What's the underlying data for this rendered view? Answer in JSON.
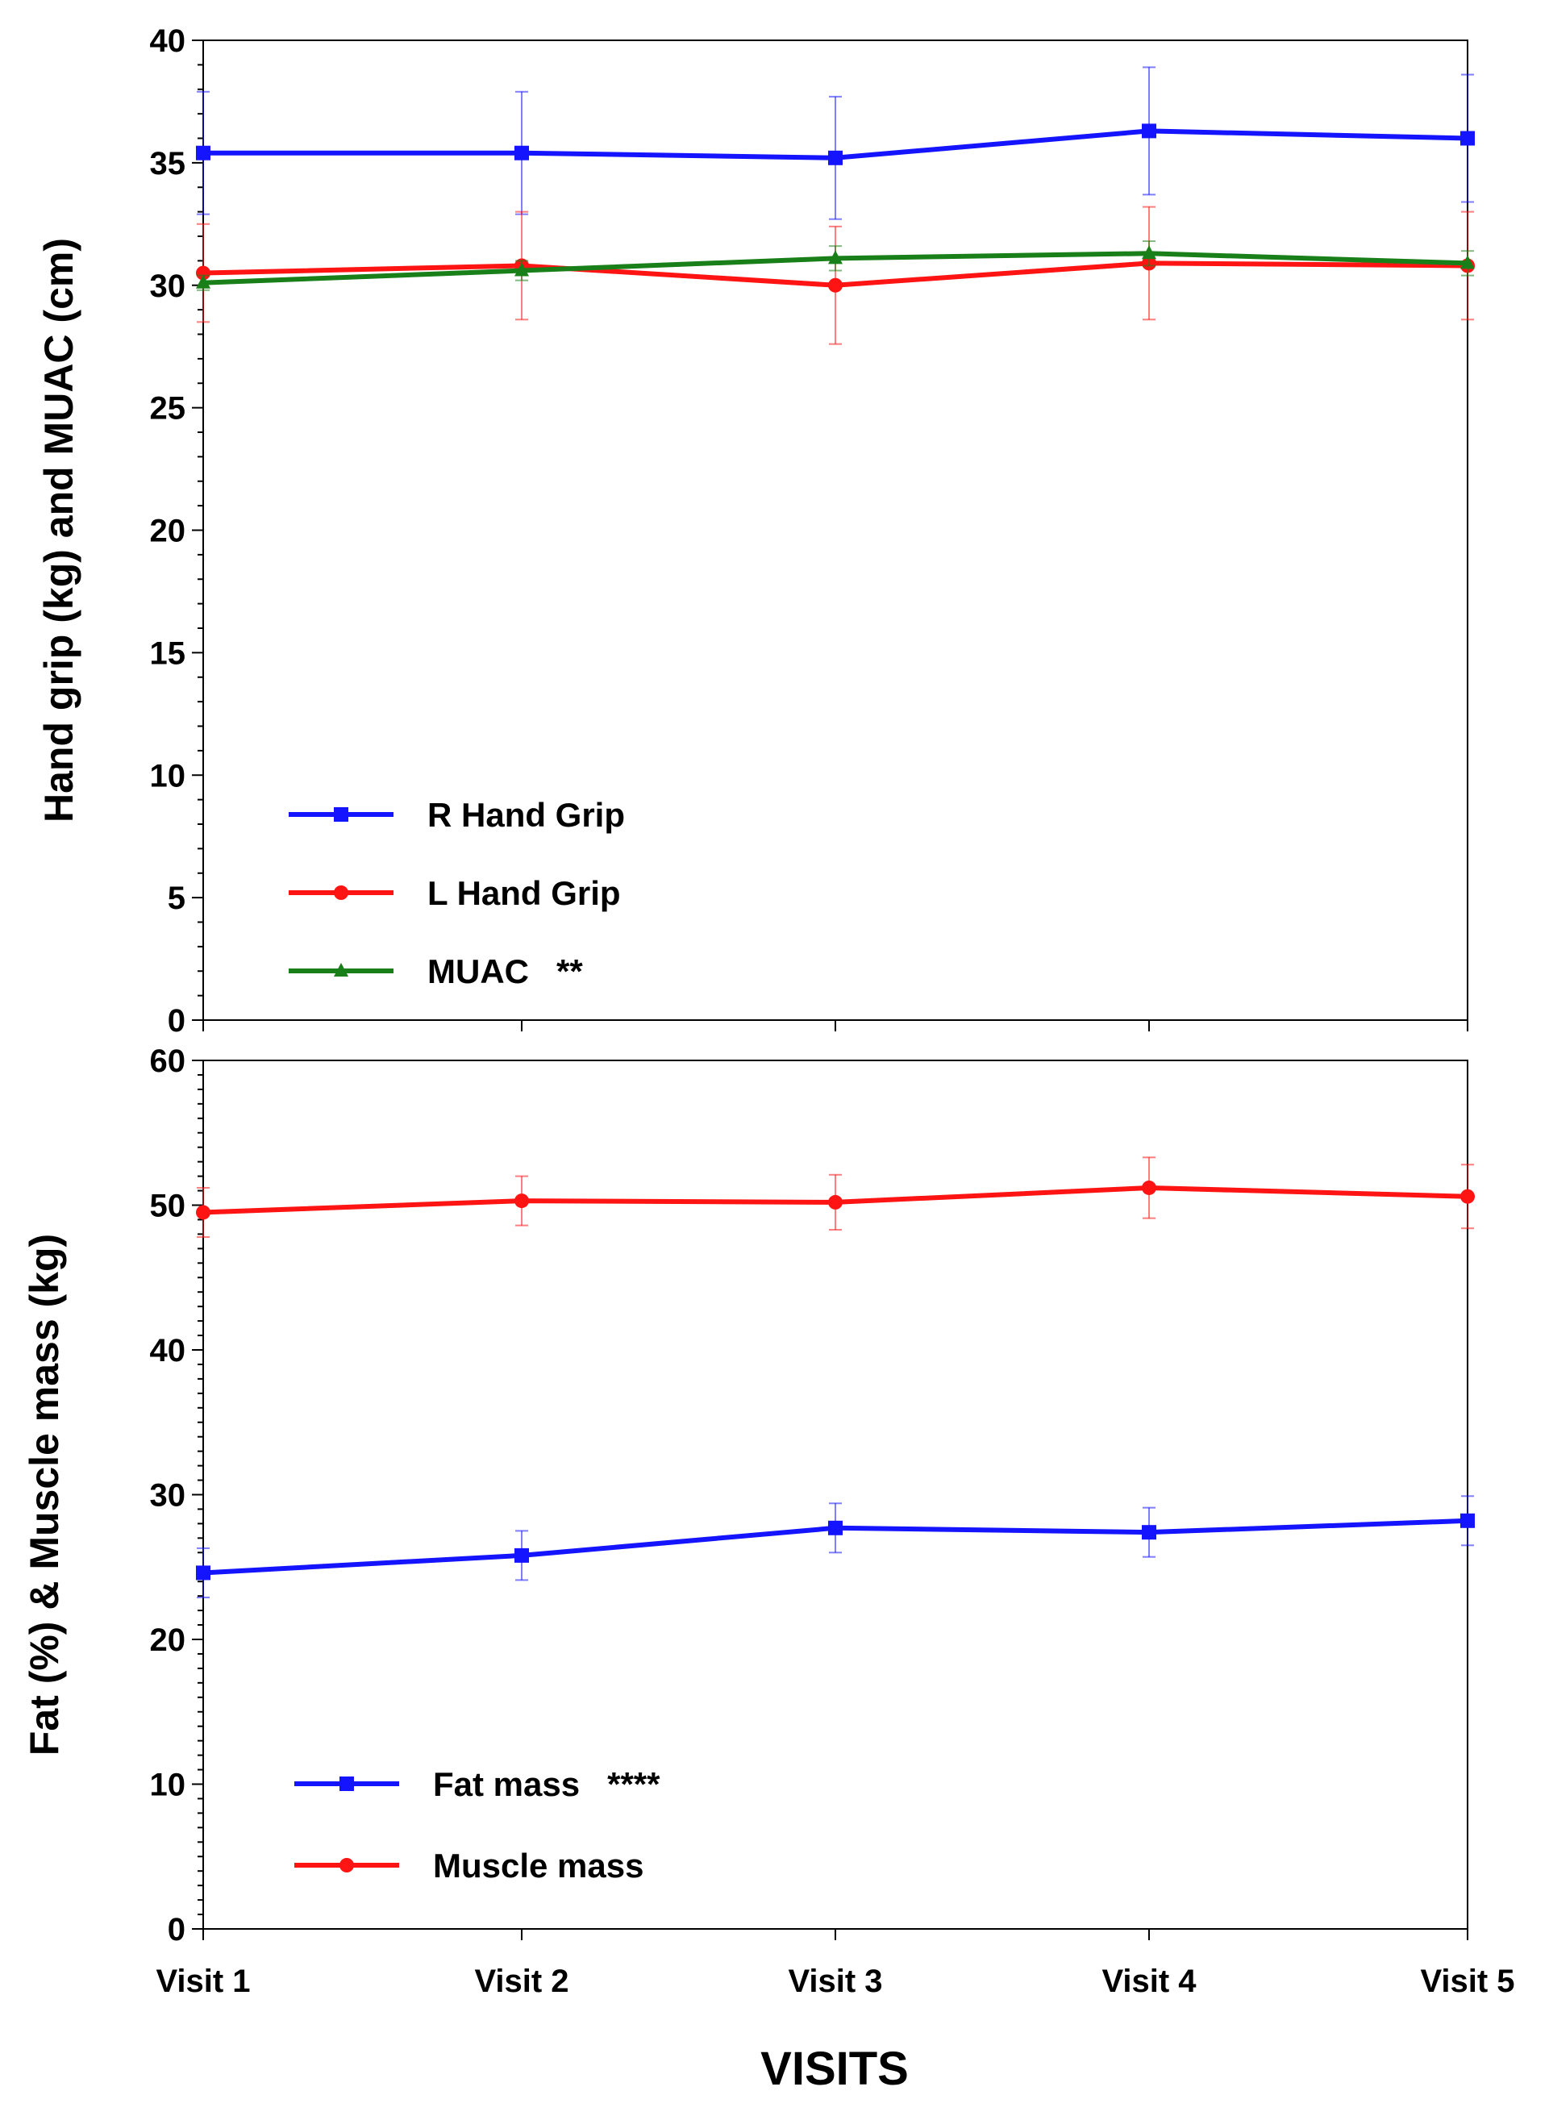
{
  "chart_data": [
    {
      "type": "line",
      "ylabel": "Hand grip (kg) and MUAC (cm)",
      "ylim": [
        0,
        40
      ],
      "yticks": [
        0,
        5,
        10,
        15,
        20,
        25,
        30,
        35,
        40
      ],
      "categories": [
        "Visit 1",
        "Visit 2",
        "Visit 3",
        "Visit 4",
        "Visit 5"
      ],
      "grid": false,
      "legend_position": "bottom-left",
      "series": [
        {
          "name": "R Hand Grip",
          "marker": "square",
          "color": "#1414ff",
          "values": [
            35.4,
            35.4,
            35.2,
            36.3,
            36.0
          ],
          "errors": [
            2.5,
            2.5,
            2.5,
            2.6,
            2.6
          ]
        },
        {
          "name": "L Hand Grip",
          "marker": "circle",
          "color": "#ff1414",
          "values": [
            30.5,
            30.8,
            30.0,
            30.9,
            30.8
          ],
          "errors": [
            2.0,
            2.2,
            2.4,
            2.3,
            2.2
          ]
        },
        {
          "name": "MUAC",
          "marker": "triangle",
          "color": "#198019",
          "annotation": "**",
          "values": [
            30.1,
            30.6,
            31.1,
            31.3,
            30.9
          ],
          "errors": [
            0.3,
            0.4,
            0.5,
            0.5,
            0.5
          ]
        }
      ]
    },
    {
      "type": "line",
      "ylabel": "Fat (%) & Muscle mass (kg)",
      "xlabel": "VISITS",
      "ylim": [
        0,
        60
      ],
      "yticks": [
        0,
        10,
        20,
        30,
        40,
        50,
        60
      ],
      "categories": [
        "Visit 1",
        "Visit 2",
        "Visit 3",
        "Visit 4",
        "Visit 5"
      ],
      "grid": false,
      "legend_position": "bottom-left",
      "series": [
        {
          "name": "Fat mass",
          "marker": "square",
          "color": "#1414ff",
          "annotation": "****",
          "values": [
            24.6,
            25.8,
            27.7,
            27.4,
            28.2
          ],
          "errors": [
            1.7,
            1.7,
            1.7,
            1.7,
            1.7
          ]
        },
        {
          "name": "Muscle mass",
          "marker": "circle",
          "color": "#ff1414",
          "values": [
            49.5,
            50.3,
            50.2,
            51.2,
            50.6
          ],
          "errors": [
            1.7,
            1.7,
            1.9,
            2.1,
            2.2
          ]
        }
      ]
    }
  ]
}
